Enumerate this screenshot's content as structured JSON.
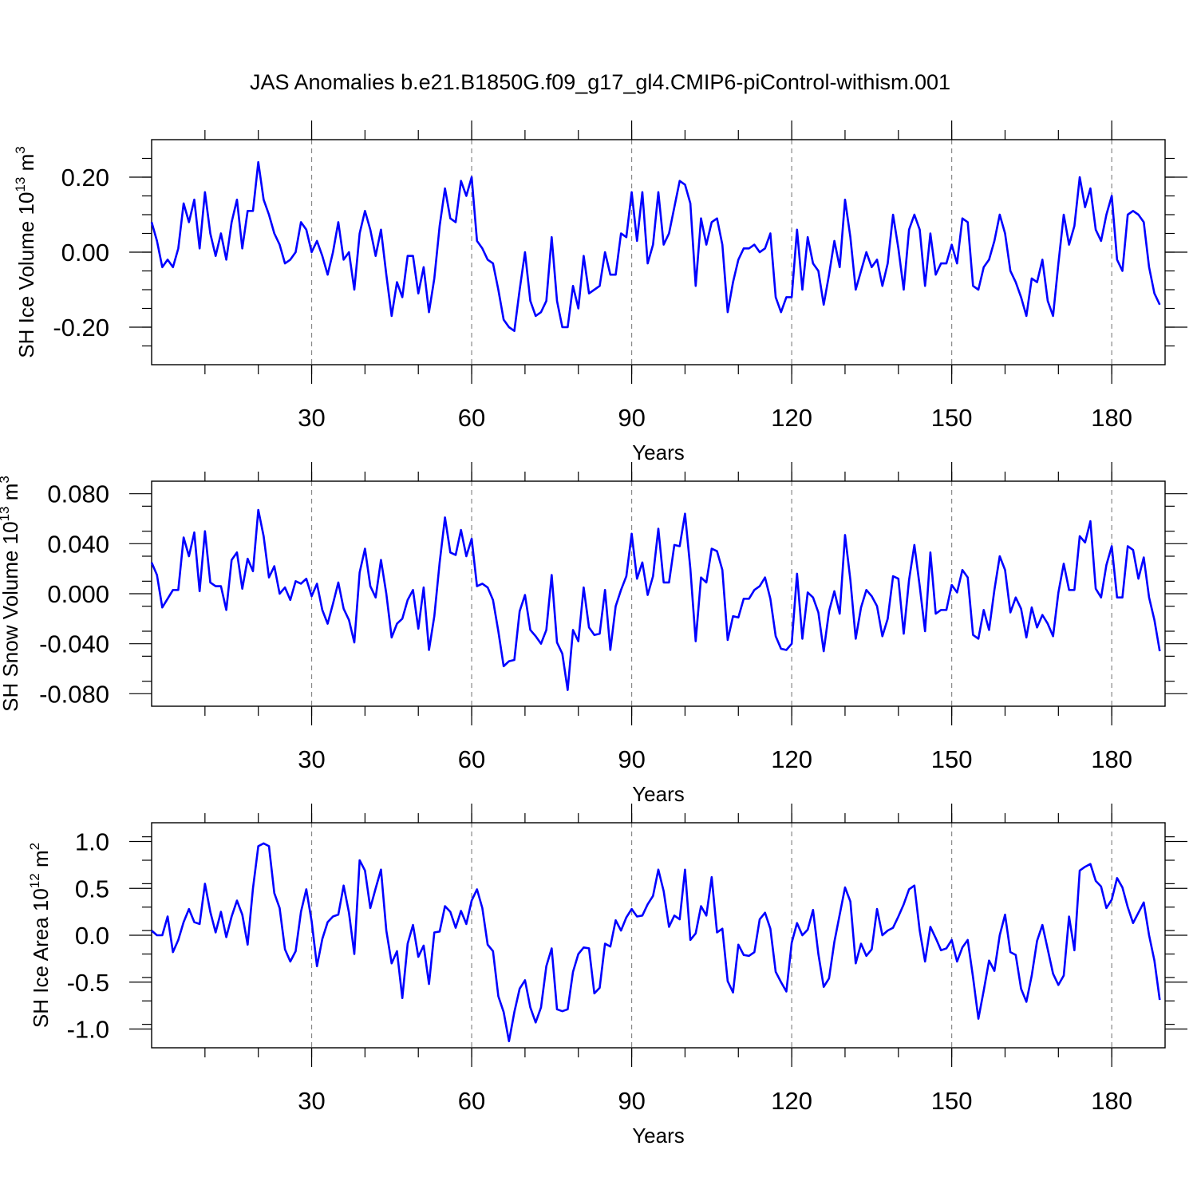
{
  "figure_title": "JAS Anomalies b.e21.B1850G.f09_g17_gl4.CMIP6-piControl-withism.001",
  "chart_data": [
    {
      "type": "line",
      "title": "",
      "xlabel": "Years",
      "ylabel": {
        "prefix": "SH Ice Volume 10",
        "exponent": "13",
        "unit": " m",
        "unit_exponent": "3"
      },
      "xlim": [
        0,
        190
      ],
      "ylim": [
        -0.3,
        0.3
      ],
      "x_ticks": [
        30,
        60,
        90,
        120,
        150,
        180
      ],
      "x_tick_labels": [
        "30",
        "60",
        "90",
        "120",
        "150",
        "180"
      ],
      "x_minor_step": 10,
      "y_ticks": [
        -0.2,
        0.0,
        0.2
      ],
      "y_tick_labels": [
        "-0.20",
        "0.00",
        "0.20"
      ],
      "y_minor_step": 0.05,
      "ref_lines_x": [
        30,
        60,
        90,
        120,
        150,
        180
      ],
      "series": [
        {
          "name": "SH Ice Volume",
          "color": "#0000ff",
          "x_start": 0,
          "values": [
            0.08,
            0.03,
            -0.04,
            -0.02,
            -0.04,
            0.01,
            0.13,
            0.08,
            0.14,
            0.01,
            0.16,
            0.05,
            -0.01,
            0.05,
            -0.02,
            0.08,
            0.14,
            0.01,
            0.11,
            0.11,
            0.24,
            0.14,
            0.1,
            0.05,
            0.02,
            -0.03,
            -0.02,
            0.0,
            0.08,
            0.06,
            0.0,
            0.03,
            -0.01,
            -0.06,
            0.0,
            0.08,
            -0.02,
            0.0,
            -0.1,
            0.05,
            0.11,
            0.06,
            -0.01,
            0.06,
            -0.06,
            -0.17,
            -0.08,
            -0.12,
            -0.01,
            -0.01,
            -0.11,
            -0.04,
            -0.16,
            -0.07,
            0.07,
            0.17,
            0.09,
            0.08,
            0.19,
            0.15,
            0.2,
            0.03,
            0.01,
            -0.02,
            -0.03,
            -0.1,
            -0.18,
            -0.2,
            -0.21,
            -0.1,
            0.0,
            -0.13,
            -0.17,
            -0.16,
            -0.13,
            0.04,
            -0.13,
            -0.2,
            -0.2,
            -0.09,
            -0.15,
            -0.01,
            -0.11,
            -0.1,
            -0.09,
            0.0,
            -0.06,
            -0.06,
            0.05,
            0.04,
            0.16,
            0.03,
            0.16,
            -0.03,
            0.02,
            0.16,
            0.02,
            0.05,
            0.12,
            0.19,
            0.18,
            0.13,
            -0.09,
            0.09,
            0.02,
            0.08,
            0.09,
            0.02,
            -0.16,
            -0.08,
            -0.02,
            0.01,
            0.01,
            0.02,
            0.0,
            0.01,
            0.05,
            -0.12,
            -0.16,
            -0.12,
            -0.12,
            0.06,
            -0.1,
            0.04,
            -0.03,
            -0.05,
            -0.14,
            -0.06,
            0.03,
            -0.04,
            0.14,
            0.04,
            -0.1,
            -0.05,
            0.0,
            -0.04,
            -0.02,
            -0.09,
            -0.03,
            0.1,
            0.01,
            -0.1,
            0.06,
            0.1,
            0.06,
            -0.09,
            0.05,
            -0.06,
            -0.03,
            -0.03,
            0.02,
            -0.03,
            0.09,
            0.08,
            -0.09,
            -0.1,
            -0.04,
            -0.02,
            0.03,
            0.1,
            0.05,
            -0.05,
            -0.08,
            -0.12,
            -0.17,
            -0.07,
            -0.08,
            -0.02,
            -0.13,
            -0.17,
            -0.03,
            0.1,
            0.02,
            0.07,
            0.2,
            0.12,
            0.17,
            0.06,
            0.03,
            0.1,
            0.15,
            -0.02,
            -0.05,
            0.1,
            0.11,
            0.1,
            0.08,
            -0.04,
            -0.11,
            -0.14
          ]
        }
      ]
    },
    {
      "type": "line",
      "title": "",
      "xlabel": "Years",
      "ylabel": {
        "prefix": "SH Snow Volume 10",
        "exponent": "13",
        "unit": " m",
        "unit_exponent": "3"
      },
      "xlim": [
        0,
        190
      ],
      "ylim": [
        -0.09,
        0.09
      ],
      "x_ticks": [
        30,
        60,
        90,
        120,
        150,
        180
      ],
      "x_tick_labels": [
        "30",
        "60",
        "90",
        "120",
        "150",
        "180"
      ],
      "x_minor_step": 10,
      "y_ticks": [
        -0.08,
        -0.04,
        0.0,
        0.04,
        0.08
      ],
      "y_tick_labels": [
        "-0.080",
        "-0.040",
        "0.000",
        "0.040",
        "0.080"
      ],
      "y_minor_step": 0.02,
      "ref_lines_x": [
        30,
        60,
        90,
        120,
        150,
        180
      ],
      "series": [
        {
          "name": "SH Snow Volume",
          "color": "#0000ff",
          "x_start": 0,
          "values": [
            0.025,
            0.015,
            -0.011,
            -0.004,
            0.003,
            0.003,
            0.045,
            0.03,
            0.049,
            0.002,
            0.05,
            0.009,
            0.006,
            0.006,
            -0.013,
            0.027,
            0.033,
            0.004,
            0.028,
            0.018,
            0.067,
            0.046,
            0.013,
            0.022,
            0.0,
            0.005,
            -0.005,
            0.01,
            0.008,
            0.012,
            -0.002,
            0.008,
            -0.013,
            -0.024,
            -0.008,
            0.009,
            -0.012,
            -0.021,
            -0.039,
            0.017,
            0.036,
            0.006,
            -0.003,
            0.027,
            0.0,
            -0.035,
            -0.024,
            -0.02,
            -0.005,
            0.003,
            -0.028,
            0.005,
            -0.045,
            -0.018,
            0.025,
            0.061,
            0.033,
            0.031,
            0.051,
            0.03,
            0.044,
            0.006,
            0.008,
            0.005,
            -0.005,
            -0.03,
            -0.058,
            -0.054,
            -0.053,
            -0.014,
            -0.001,
            -0.029,
            -0.034,
            -0.04,
            -0.029,
            0.015,
            -0.039,
            -0.048,
            -0.077,
            -0.029,
            -0.038,
            0.005,
            -0.027,
            -0.033,
            -0.032,
            0.003,
            -0.045,
            -0.01,
            0.003,
            0.014,
            0.048,
            0.012,
            0.025,
            -0.001,
            0.014,
            0.052,
            0.009,
            0.009,
            0.039,
            0.038,
            0.064,
            0.02,
            -0.038,
            0.013,
            0.009,
            0.036,
            0.034,
            0.019,
            -0.037,
            -0.018,
            -0.019,
            -0.004,
            -0.004,
            0.003,
            0.006,
            0.013,
            -0.004,
            -0.034,
            -0.044,
            -0.045,
            -0.04,
            0.016,
            -0.036,
            0.001,
            -0.003,
            -0.015,
            -0.046,
            -0.014,
            0.002,
            -0.016,
            0.047,
            0.011,
            -0.036,
            -0.011,
            0.003,
            -0.002,
            -0.01,
            -0.034,
            -0.02,
            0.014,
            0.012,
            -0.032,
            0.011,
            0.039,
            0.006,
            -0.03,
            0.033,
            -0.016,
            -0.013,
            -0.013,
            0.007,
            0.001,
            0.019,
            0.013,
            -0.033,
            -0.036,
            -0.013,
            -0.029,
            0.003,
            0.03,
            0.019,
            -0.015,
            -0.003,
            -0.012,
            -0.035,
            -0.011,
            -0.027,
            -0.017,
            -0.024,
            -0.034,
            0.001,
            0.024,
            0.003,
            0.003,
            0.046,
            0.041,
            0.058,
            0.004,
            -0.003,
            0.023,
            0.038,
            -0.003,
            -0.003,
            0.038,
            0.035,
            0.012,
            0.029,
            -0.003,
            -0.021,
            -0.046
          ]
        }
      ]
    },
    {
      "type": "line",
      "title": "",
      "xlabel": "Years",
      "ylabel": {
        "prefix": "SH Ice Area 10",
        "exponent": "12",
        "unit": " m",
        "unit_exponent": "2"
      },
      "xlim": [
        0,
        190
      ],
      "ylim": [
        -1.2,
        1.2
      ],
      "x_ticks": [
        30,
        60,
        90,
        120,
        150,
        180
      ],
      "x_tick_labels": [
        "30",
        "60",
        "90",
        "120",
        "150",
        "180"
      ],
      "x_minor_step": 10,
      "y_ticks": [
        -1.0,
        -0.5,
        0.0,
        0.5,
        1.0
      ],
      "y_tick_labels": [
        "-1.0",
        "-0.5",
        "0.0",
        "0.5",
        "1.0"
      ],
      "y_minor_step": 0.25,
      "ref_lines_x": [
        30,
        60,
        90,
        120,
        150,
        180
      ],
      "series": [
        {
          "name": "SH Ice Area",
          "color": "#0000ff",
          "x_start": 0,
          "values": [
            0.05,
            0.0,
            0.0,
            0.2,
            -0.18,
            -0.05,
            0.14,
            0.28,
            0.14,
            0.12,
            0.55,
            0.25,
            0.03,
            0.25,
            -0.02,
            0.2,
            0.37,
            0.22,
            -0.1,
            0.5,
            0.95,
            0.98,
            0.95,
            0.45,
            0.29,
            -0.15,
            -0.28,
            -0.17,
            0.25,
            0.49,
            0.15,
            -0.33,
            -0.04,
            0.14,
            0.2,
            0.22,
            0.53,
            0.24,
            -0.2,
            0.8,
            0.69,
            0.29,
            0.5,
            0.7,
            0.05,
            -0.3,
            -0.17,
            -0.67,
            -0.09,
            0.11,
            -0.23,
            -0.11,
            -0.52,
            0.03,
            0.04,
            0.31,
            0.25,
            0.08,
            0.26,
            0.12,
            0.37,
            0.49,
            0.29,
            -0.1,
            -0.17,
            -0.65,
            -0.82,
            -1.13,
            -0.82,
            -0.57,
            -0.48,
            -0.77,
            -0.93,
            -0.77,
            -0.33,
            -0.14,
            -0.79,
            -0.81,
            -0.79,
            -0.39,
            -0.2,
            -0.13,
            -0.14,
            -0.62,
            -0.56,
            -0.09,
            -0.12,
            0.16,
            0.05,
            0.19,
            0.28,
            0.2,
            0.21,
            0.33,
            0.42,
            0.7,
            0.47,
            0.09,
            0.21,
            0.17,
            0.7,
            -0.05,
            0.02,
            0.31,
            0.21,
            0.62,
            0.03,
            0.07,
            -0.49,
            -0.61,
            -0.1,
            -0.21,
            -0.22,
            -0.18,
            0.17,
            0.24,
            0.07,
            -0.39,
            -0.5,
            -0.6,
            -0.08,
            0.13,
            0.0,
            0.06,
            0.27,
            -0.2,
            -0.55,
            -0.46,
            -0.07,
            0.22,
            0.51,
            0.36,
            -0.3,
            -0.09,
            -0.22,
            -0.15,
            0.28,
            0.0,
            0.05,
            0.08,
            0.2,
            0.33,
            0.49,
            0.53,
            0.05,
            -0.28,
            0.09,
            -0.03,
            -0.16,
            -0.14,
            -0.05,
            -0.28,
            -0.13,
            -0.05,
            -0.45,
            -0.89,
            -0.59,
            -0.27,
            -0.38,
            0.0,
            0.22,
            -0.18,
            -0.21,
            -0.57,
            -0.71,
            -0.43,
            -0.06,
            0.11,
            -0.15,
            -0.41,
            -0.53,
            -0.43,
            0.2,
            -0.16,
            0.69,
            0.73,
            0.76,
            0.58,
            0.52,
            0.29,
            0.38,
            0.61,
            0.51,
            0.3,
            0.13,
            0.24,
            0.35,
            0.0,
            -0.27,
            -0.69
          ]
        }
      ]
    }
  ]
}
